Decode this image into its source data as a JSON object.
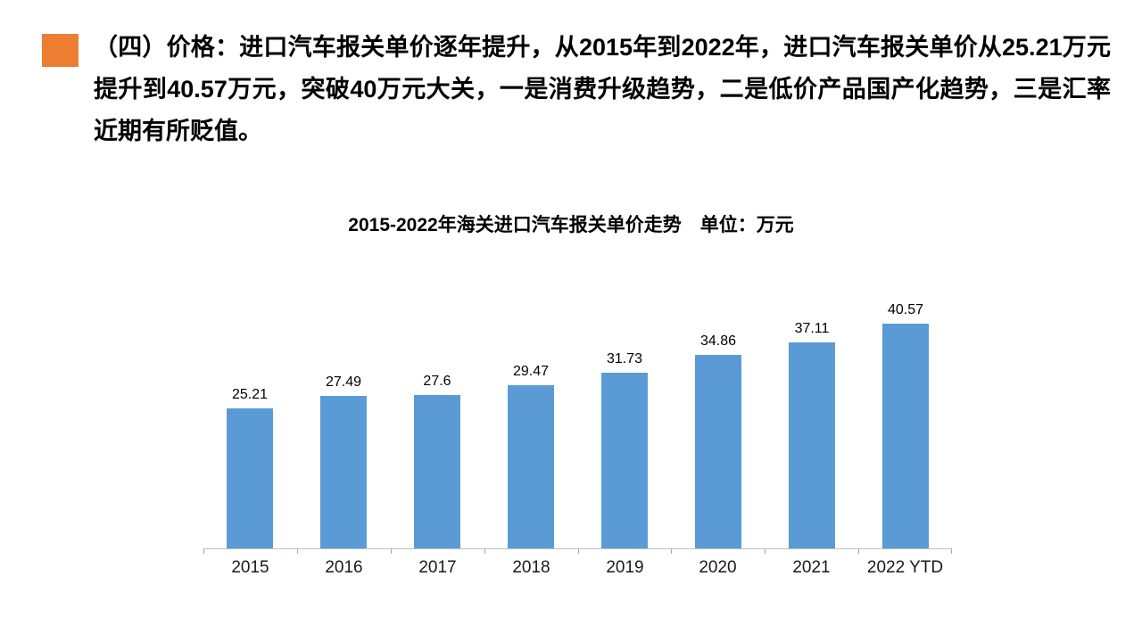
{
  "slide": {
    "heading": "（四）价格：进口汽车报关单价逐年提升，从2015年到2022年，进口汽车报关单价从25.21万元提升到40.57万元，突破40万元大关，一是消费升级趋势，二是低价产品国产化趋势，三是汇率近期有所贬值。"
  },
  "colors": {
    "accent_orange": "#ED7D31",
    "bar_blue": "#5B9BD5",
    "axis_gray": "#BFBFBF",
    "tick_gray": "#A6A6A6",
    "text_black": "#000000"
  },
  "chart_data": {
    "type": "bar",
    "title": "2015-2022年海关进口汽车报关单价走势　单位：万元",
    "unit": "万元",
    "categories": [
      "2015",
      "2016",
      "2017",
      "2018",
      "2019",
      "2020",
      "2021",
      "2022 YTD"
    ],
    "values": [
      25.21,
      27.49,
      27.6,
      29.47,
      31.73,
      34.86,
      37.11,
      40.57
    ],
    "data_labels": [
      "25.21",
      "27.49",
      "27.6",
      "29.47",
      "31.73",
      "34.86",
      "37.11",
      "40.57"
    ],
    "xlabel": "",
    "ylabel": "万元",
    "ylim": [
      0,
      45
    ],
    "grid": false,
    "legend": false,
    "bar_color": "#5B9BD5"
  }
}
